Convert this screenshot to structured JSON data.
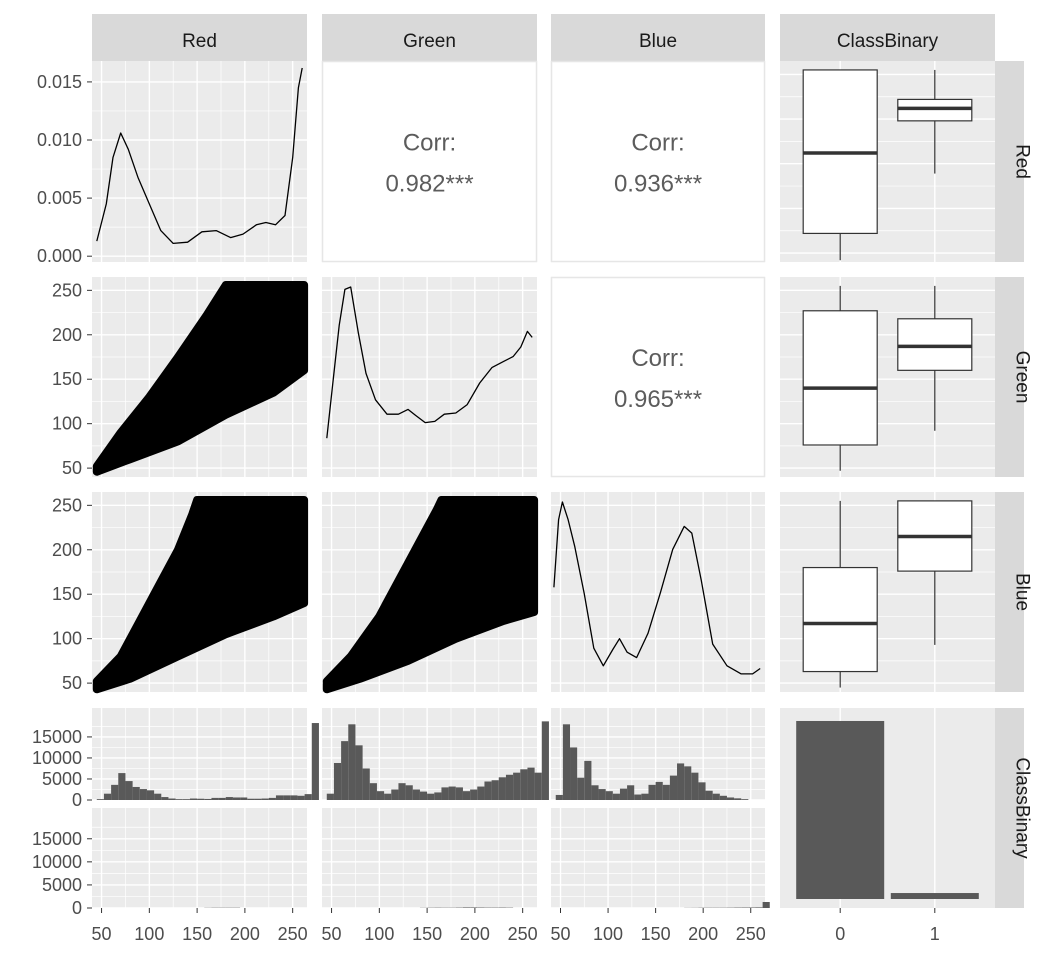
{
  "variables": [
    "Red",
    "Green",
    "Blue",
    "ClassBinary"
  ],
  "chart_data": {
    "type": "scatter-matrix",
    "title": "",
    "variables": [
      "Red",
      "Green",
      "Blue",
      "ClassBinary"
    ],
    "continuous_axis": {
      "ticks": [
        50,
        100,
        150,
        200,
        250
      ],
      "range": [
        40,
        265
      ]
    },
    "density_axis": {
      "ticks": [
        "0.000",
        "0.005",
        "0.010",
        "0.015"
      ],
      "range": [
        -0.0005,
        0.0168
      ]
    },
    "count_axis": {
      "ticks": [
        "0",
        "5000",
        "10000",
        "15000"
      ],
      "range": [
        0,
        19500
      ]
    },
    "class_levels": [
      "0",
      "1"
    ],
    "correlations": [
      {
        "row": "Red",
        "col": "Green",
        "label": "Corr:",
        "value": "0.982***"
      },
      {
        "row": "Red",
        "col": "Blue",
        "label": "Corr:",
        "value": "0.936***"
      },
      {
        "row": "Green",
        "col": "Blue",
        "label": "Corr:",
        "value": "0.965***"
      }
    ],
    "densities": {
      "Red": [
        [
          45,
          0.0013
        ],
        [
          55,
          0.0045
        ],
        [
          62,
          0.0085
        ],
        [
          70,
          0.0106
        ],
        [
          78,
          0.0092
        ],
        [
          88,
          0.0068
        ],
        [
          100,
          0.0045
        ],
        [
          112,
          0.0022
        ],
        [
          125,
          0.0011
        ],
        [
          140,
          0.0012
        ],
        [
          155,
          0.0021
        ],
        [
          170,
          0.0022
        ],
        [
          185,
          0.0016
        ],
        [
          198,
          0.0019
        ],
        [
          212,
          0.0027
        ],
        [
          222,
          0.0029
        ],
        [
          232,
          0.0027
        ],
        [
          242,
          0.0035
        ],
        [
          250,
          0.0085
        ],
        [
          256,
          0.0145
        ],
        [
          260,
          0.0162
        ]
      ],
      "Green": [
        [
          45,
          0.0024
        ],
        [
          52,
          0.0075
        ],
        [
          58,
          0.0118
        ],
        [
          64,
          0.0148
        ],
        [
          70,
          0.015
        ],
        [
          78,
          0.0112
        ],
        [
          86,
          0.0078
        ],
        [
          96,
          0.0056
        ],
        [
          108,
          0.0044
        ],
        [
          120,
          0.0044
        ],
        [
          130,
          0.0048
        ],
        [
          138,
          0.0043
        ],
        [
          148,
          0.0037
        ],
        [
          158,
          0.0038
        ],
        [
          168,
          0.0044
        ],
        [
          180,
          0.0045
        ],
        [
          192,
          0.0052
        ],
        [
          205,
          0.007
        ],
        [
          218,
          0.0083
        ],
        [
          230,
          0.0088
        ],
        [
          240,
          0.0092
        ],
        [
          248,
          0.01
        ],
        [
          255,
          0.0113
        ],
        [
          260,
          0.0108
        ]
      ],
      "Blue": [
        [
          43,
          0.007
        ],
        [
          48,
          0.012
        ],
        [
          52,
          0.0133
        ],
        [
          58,
          0.012
        ],
        [
          65,
          0.01
        ],
        [
          75,
          0.0065
        ],
        [
          85,
          0.0025
        ],
        [
          95,
          0.0012
        ],
        [
          105,
          0.0024
        ],
        [
          112,
          0.0032
        ],
        [
          120,
          0.0022
        ],
        [
          130,
          0.0018
        ],
        [
          142,
          0.0036
        ],
        [
          155,
          0.0066
        ],
        [
          168,
          0.0098
        ],
        [
          180,
          0.0115
        ],
        [
          188,
          0.011
        ],
        [
          198,
          0.0075
        ],
        [
          210,
          0.0028
        ],
        [
          225,
          0.0012
        ],
        [
          240,
          0.0006
        ],
        [
          252,
          0.0006
        ],
        [
          260,
          0.001
        ]
      ]
    },
    "class_boxplots": {
      "Red": [
        {
          "class": "0",
          "whisker_low": 42,
          "q1": 72,
          "median": 162,
          "q3": 255,
          "whisker_high": 255
        },
        {
          "class": "1",
          "whisker_low": 139,
          "q1": 198,
          "median": 212,
          "q3": 222,
          "whisker_high": 255
        }
      ],
      "Green": [
        {
          "class": "0",
          "whisker_low": 47,
          "q1": 76,
          "median": 140,
          "q3": 227,
          "whisker_high": 255
        },
        {
          "class": "1",
          "whisker_low": 92,
          "q1": 160,
          "median": 187,
          "q3": 218,
          "whisker_high": 255
        }
      ],
      "Blue": [
        {
          "class": "0",
          "whisker_low": 45,
          "q1": 63,
          "median": 117,
          "q3": 180,
          "whisker_high": 255
        },
        {
          "class": "1",
          "whisker_low": 93,
          "q1": 176,
          "median": 215,
          "q3": 255,
          "whisker_high": 255
        }
      ]
    },
    "class_counts": [
      {
        "class": "0",
        "count": 17900
      },
      {
        "class": "1",
        "count": 600
      }
    ],
    "histograms": {
      "bin_width": 7.5,
      "bin_start": 45,
      "Red": {
        "class0": [
          200,
          1500,
          3600,
          6400,
          4500,
          3100,
          2600,
          2300,
          1500,
          700,
          350,
          200,
          200,
          350,
          300,
          250,
          500,
          500,
          700,
          600,
          600,
          300,
          300,
          350,
          500,
          1100,
          1100,
          1100,
          1000,
          1400,
          18300
        ],
        "class1": [
          0,
          0,
          0,
          0,
          0,
          0,
          0,
          0,
          0,
          0,
          0,
          0,
          0,
          0,
          0,
          40,
          60,
          60,
          60,
          60,
          0,
          0,
          0,
          0,
          0,
          0,
          0,
          0,
          0,
          0,
          0
        ]
      },
      "Green": {
        "class0": [
          1500,
          8800,
          14000,
          18000,
          13000,
          7500,
          4000,
          2100,
          1500,
          2500,
          4000,
          3500,
          2500,
          2000,
          1500,
          1800,
          3000,
          3200,
          3000,
          2100,
          2500,
          3200,
          4400,
          4700,
          5400,
          6000,
          6500,
          7300,
          7700,
          6500,
          18700
        ],
        "class1": [
          0,
          0,
          0,
          0,
          0,
          0,
          0,
          0,
          0,
          0,
          0,
          0,
          0,
          40,
          60,
          70,
          60,
          60,
          80,
          120,
          120,
          100,
          80,
          80,
          90,
          70,
          0,
          0,
          0,
          0,
          0
        ]
      },
      "Blue": {
        "class0": [
          1200,
          18000,
          12500,
          5300,
          9300,
          3500,
          2600,
          2100,
          1500,
          2700,
          3500,
          1300,
          1500,
          3600,
          4300,
          3600,
          5800,
          8700,
          8000,
          6500,
          4200,
          2200,
          1500,
          1000,
          600,
          400,
          200,
          0,
          0,
          0,
          0
        ],
        "class1": [
          0,
          0,
          0,
          0,
          0,
          0,
          0,
          0,
          0,
          0,
          0,
          0,
          0,
          0,
          0,
          0,
          0,
          0,
          30,
          40,
          60,
          60,
          60,
          60,
          70,
          90,
          100,
          110,
          130,
          1300,
          0
        ]
      }
    },
    "scatter_envelopes": {
      "Green_vs_Red": {
        "lower": [
          [
            45,
            46
          ],
          [
            80,
            60
          ],
          [
            130,
            80
          ],
          [
            180,
            110
          ],
          [
            230,
            135
          ],
          [
            262,
            160
          ]
        ],
        "upper": [
          [
            45,
            52
          ],
          [
            70,
            90
          ],
          [
            100,
            130
          ],
          [
            130,
            175
          ],
          [
            160,
            222
          ],
          [
            180,
            256
          ],
          [
            262,
            256
          ]
        ]
      },
      "Blue_vs_Red": {
        "lower": [
          [
            45,
            43
          ],
          [
            80,
            55
          ],
          [
            130,
            80
          ],
          [
            180,
            105
          ],
          [
            230,
            125
          ],
          [
            262,
            140
          ]
        ],
        "upper": [
          [
            45,
            52
          ],
          [
            70,
            80
          ],
          [
            90,
            120
          ],
          [
            110,
            160
          ],
          [
            130,
            200
          ],
          [
            145,
            240
          ],
          [
            150,
            256
          ],
          [
            262,
            256
          ]
        ]
      },
      "Blue_vs_Green": {
        "lower": [
          [
            45,
            43
          ],
          [
            80,
            55
          ],
          [
            130,
            75
          ],
          [
            180,
            100
          ],
          [
            230,
            120
          ],
          [
            262,
            130
          ]
        ],
        "upper": [
          [
            45,
            52
          ],
          [
            70,
            80
          ],
          [
            100,
            125
          ],
          [
            120,
            165
          ],
          [
            140,
            205
          ],
          [
            160,
            245
          ],
          [
            165,
            256
          ],
          [
            262,
            256
          ]
        ]
      }
    }
  }
}
